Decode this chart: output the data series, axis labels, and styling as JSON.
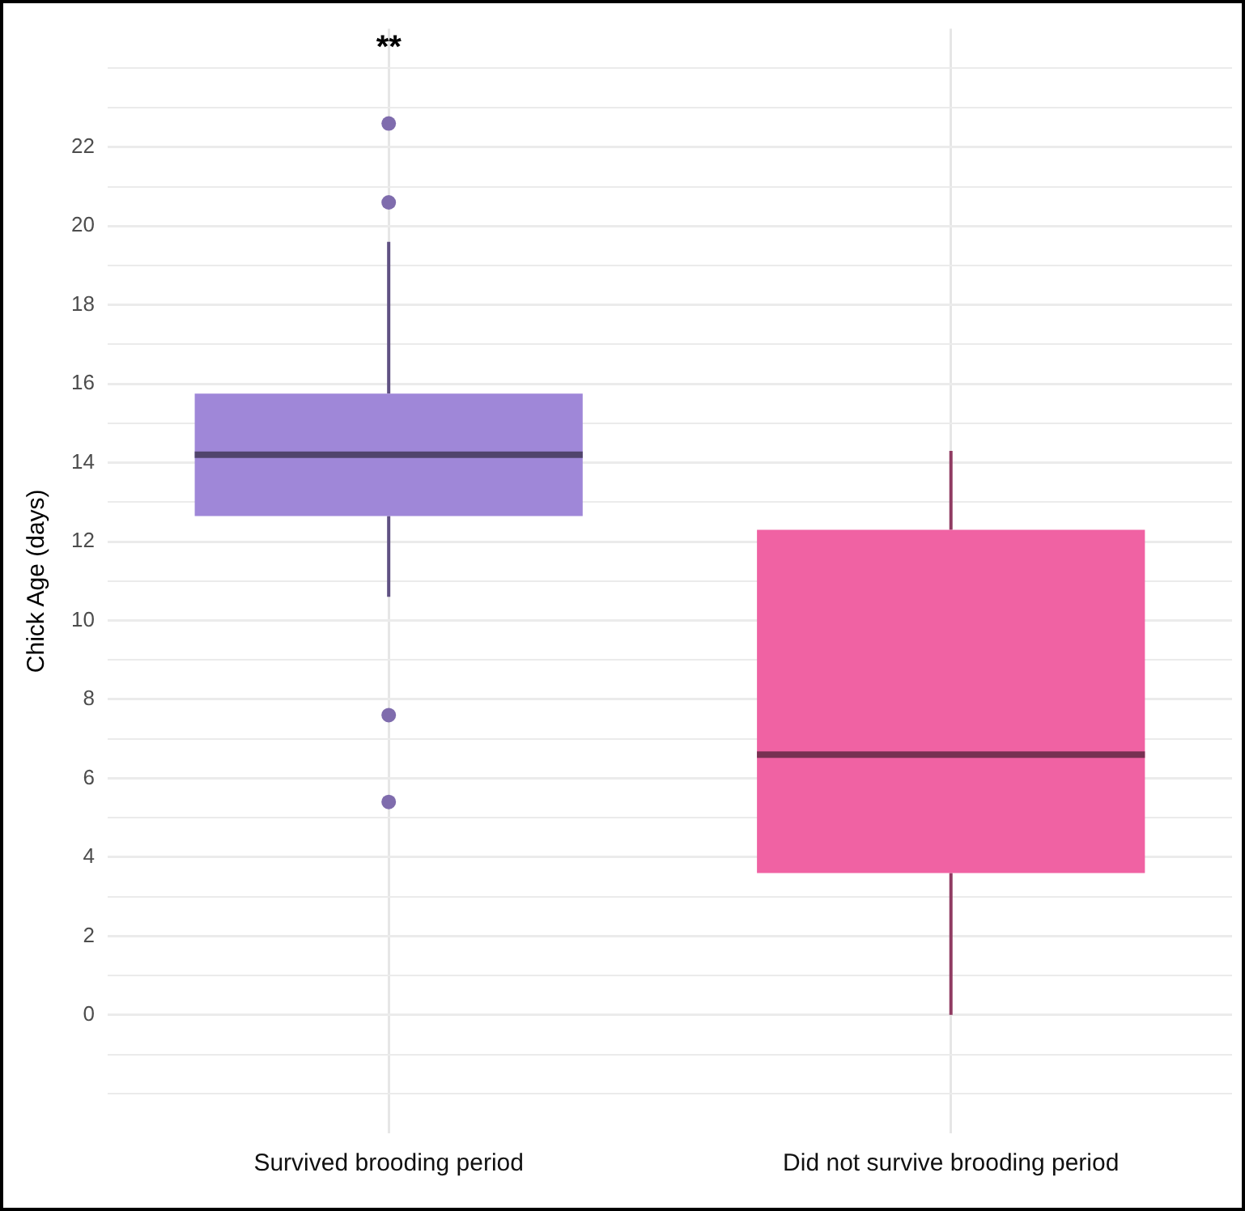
{
  "chart_data": {
    "type": "box",
    "ylabel": "Chick Age (days)",
    "categories": [
      "Survived brooding period",
      "Did not survive brooding period"
    ],
    "colors": [
      "#9f87d8",
      "#f062a3"
    ],
    "boxes": [
      {
        "low": 10.6,
        "q1": 12.65,
        "median": 14.2,
        "q3": 15.75,
        "high": 19.6,
        "outliers": [
          22.6,
          20.6,
          7.6,
          5.4
        ]
      },
      {
        "low": 0,
        "q1": 3.6,
        "median": 6.6,
        "q3": 12.3,
        "high": 14.3
      }
    ],
    "ylim": [
      -3,
      25
    ],
    "yticks": [
      {
        "value": -2,
        "label": null
      },
      {
        "value": -1,
        "label": null
      },
      0,
      {
        "value": 1,
        "label": null
      },
      2,
      {
        "value": 3,
        "label": null
      },
      4,
      {
        "value": 5,
        "label": null
      },
      6,
      {
        "value": 7,
        "label": null
      },
      8,
      {
        "value": 9,
        "label": null
      },
      10,
      {
        "value": 11,
        "label": null
      },
      12,
      {
        "value": 13,
        "label": null
      },
      14,
      {
        "value": 15,
        "label": null
      },
      16,
      {
        "value": 17,
        "label": null
      },
      18,
      {
        "value": 19,
        "label": null
      },
      20,
      {
        "value": 21,
        "label": null
      },
      22,
      {
        "value": 23,
        "label": null
      },
      {
        "value": 24,
        "label": null
      }
    ],
    "grid": true,
    "legend": false,
    "annotations": [
      "**"
    ]
  }
}
